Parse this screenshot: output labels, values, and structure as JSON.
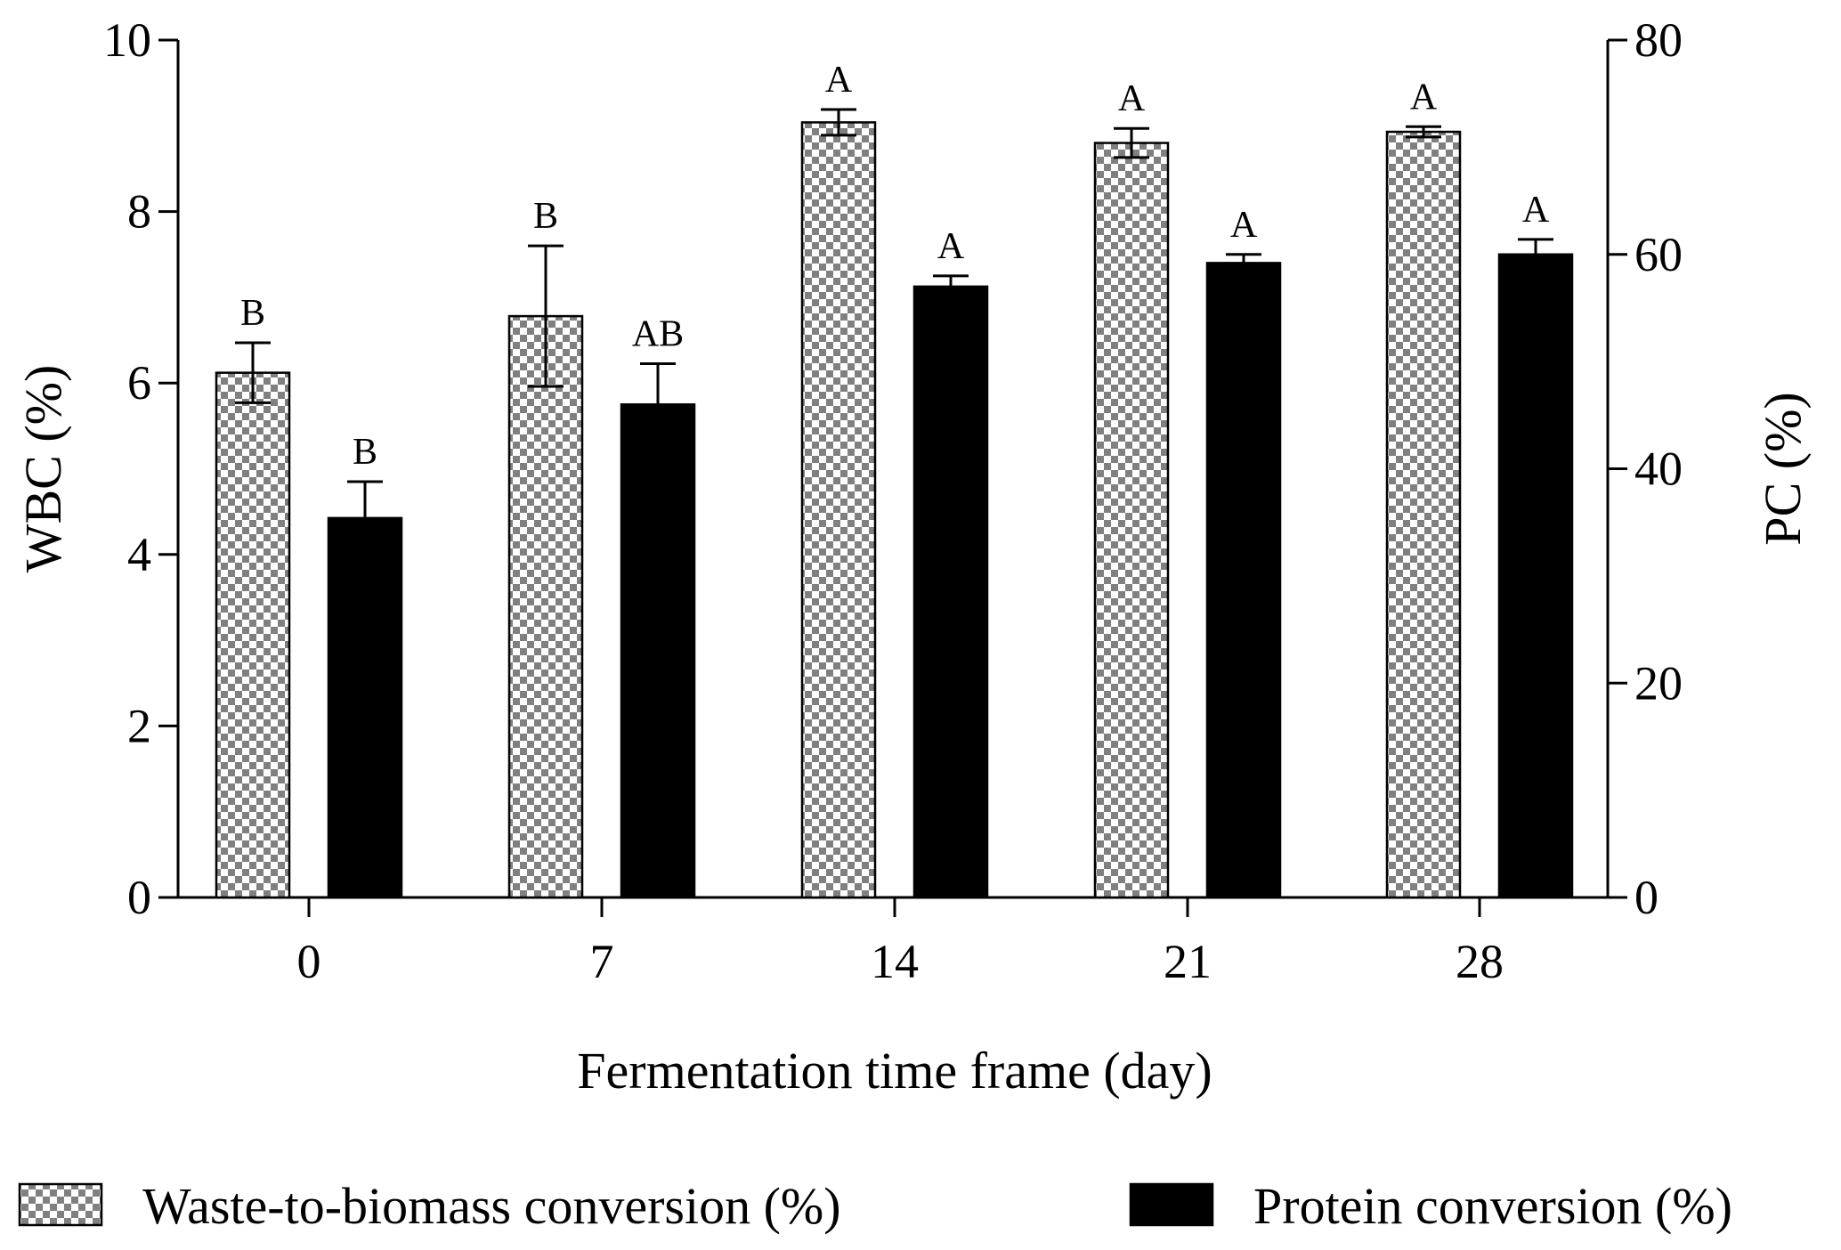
{
  "chart_data": {
    "type": "bar",
    "title": "",
    "xlabel": "Fermentation time frame (day)",
    "ylabel_left": "WBC (%)",
    "ylabel_right": "PC (%)",
    "categories": [
      "0",
      "7",
      "14",
      "21",
      "28"
    ],
    "ylim_left": [
      0,
      10
    ],
    "ylim_right": [
      0,
      80
    ],
    "yticks_left": [
      "0",
      "2",
      "4",
      "6",
      "8",
      "10"
    ],
    "yticks_right": [
      "0",
      "20",
      "40",
      "60",
      "80"
    ],
    "grid": false,
    "legend_position": "bottom",
    "series": [
      {
        "name": "Waste-to-biomass conversion (%)",
        "axis": "left",
        "pattern": "checkerboard",
        "color": "#808080",
        "values": [
          6.12,
          6.78,
          9.04,
          8.8,
          8.93
        ],
        "errors": [
          0.35,
          0.82,
          0.15,
          0.17,
          0.06
        ],
        "labels": [
          "B",
          "B",
          "A",
          "A",
          "A"
        ]
      },
      {
        "name": "Protein conversion (%)",
        "axis": "right",
        "pattern": "solid",
        "color": "#000000",
        "values": [
          35.4,
          46.0,
          57.0,
          59.2,
          60.0
        ],
        "errors": [
          3.4,
          3.8,
          1.0,
          0.8,
          1.4
        ],
        "labels": [
          "B",
          "AB",
          "A",
          "A",
          "A"
        ]
      }
    ]
  }
}
